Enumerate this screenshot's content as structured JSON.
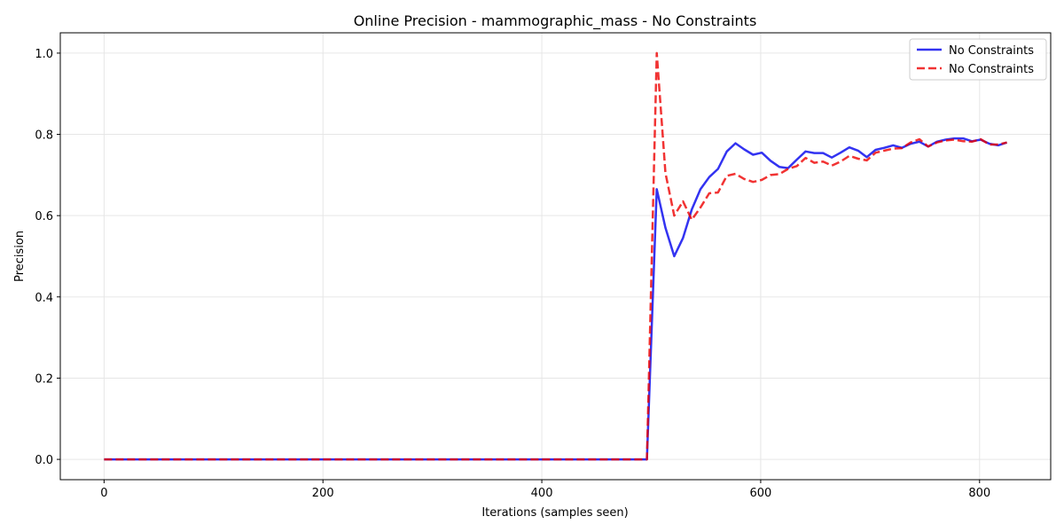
{
  "chart_data": {
    "type": "line",
    "title": "Online Precision - mammographic_mass - No Constraints",
    "xlabel": "Iterations (samples seen)",
    "ylabel": "Precision",
    "xlim": [
      -40,
      865
    ],
    "ylim": [
      -0.05,
      1.05
    ],
    "xticks": [
      0,
      200,
      400,
      600,
      800
    ],
    "xtick_labels": [
      "0",
      "200",
      "400",
      "600",
      "800"
    ],
    "yticks": [
      0.0,
      0.2,
      0.4,
      0.6,
      0.8,
      1.0
    ],
    "ytick_labels": [
      "0.0",
      "0.2",
      "0.4",
      "0.6",
      "0.8",
      "1.0"
    ],
    "grid": true,
    "legend_position": "top-right",
    "series": [
      {
        "name": "No Constraints",
        "color": "#0000ee",
        "style": "solid",
        "points": [
          [
            0,
            0.0
          ],
          [
            100,
            0.0
          ],
          [
            200,
            0.0
          ],
          [
            300,
            0.0
          ],
          [
            400,
            0.0
          ],
          [
            496,
            0.0
          ],
          [
            505,
            0.665
          ],
          [
            513,
            0.57
          ],
          [
            521,
            0.5
          ],
          [
            529,
            0.545
          ],
          [
            537,
            0.615
          ],
          [
            545,
            0.665
          ],
          [
            553,
            0.695
          ],
          [
            561,
            0.715
          ],
          [
            569,
            0.758
          ],
          [
            577,
            0.778
          ],
          [
            585,
            0.763
          ],
          [
            593,
            0.75
          ],
          [
            601,
            0.755
          ],
          [
            609,
            0.735
          ],
          [
            617,
            0.72
          ],
          [
            625,
            0.717
          ],
          [
            633,
            0.738
          ],
          [
            641,
            0.758
          ],
          [
            649,
            0.754
          ],
          [
            657,
            0.754
          ],
          [
            665,
            0.743
          ],
          [
            673,
            0.755
          ],
          [
            681,
            0.768
          ],
          [
            689,
            0.76
          ],
          [
            697,
            0.744
          ],
          [
            705,
            0.762
          ],
          [
            713,
            0.767
          ],
          [
            721,
            0.773
          ],
          [
            729,
            0.767
          ],
          [
            737,
            0.777
          ],
          [
            745,
            0.782
          ],
          [
            753,
            0.77
          ],
          [
            761,
            0.782
          ],
          [
            769,
            0.787
          ],
          [
            777,
            0.79
          ],
          [
            785,
            0.79
          ],
          [
            793,
            0.783
          ],
          [
            801,
            0.787
          ],
          [
            809,
            0.777
          ],
          [
            817,
            0.773
          ],
          [
            825,
            0.78
          ]
        ]
      },
      {
        "name": "No Constraints",
        "color": "#ee0000",
        "style": "dashed",
        "points": [
          [
            0,
            0.0
          ],
          [
            100,
            0.0
          ],
          [
            200,
            0.0
          ],
          [
            300,
            0.0
          ],
          [
            400,
            0.0
          ],
          [
            496,
            0.0
          ],
          [
            505,
            1.0
          ],
          [
            513,
            0.705
          ],
          [
            521,
            0.6
          ],
          [
            529,
            0.635
          ],
          [
            537,
            0.59
          ],
          [
            545,
            0.62
          ],
          [
            553,
            0.655
          ],
          [
            561,
            0.657
          ],
          [
            569,
            0.698
          ],
          [
            577,
            0.703
          ],
          [
            585,
            0.69
          ],
          [
            593,
            0.683
          ],
          [
            601,
            0.688
          ],
          [
            609,
            0.7
          ],
          [
            617,
            0.702
          ],
          [
            625,
            0.715
          ],
          [
            633,
            0.722
          ],
          [
            641,
            0.742
          ],
          [
            649,
            0.73
          ],
          [
            657,
            0.733
          ],
          [
            665,
            0.723
          ],
          [
            673,
            0.733
          ],
          [
            681,
            0.747
          ],
          [
            689,
            0.74
          ],
          [
            697,
            0.736
          ],
          [
            705,
            0.755
          ],
          [
            713,
            0.76
          ],
          [
            721,
            0.765
          ],
          [
            729,
            0.766
          ],
          [
            737,
            0.78
          ],
          [
            745,
            0.788
          ],
          [
            753,
            0.77
          ],
          [
            761,
            0.78
          ],
          [
            769,
            0.785
          ],
          [
            777,
            0.787
          ],
          [
            785,
            0.783
          ],
          [
            793,
            0.782
          ],
          [
            801,
            0.788
          ],
          [
            809,
            0.775
          ],
          [
            817,
            0.775
          ],
          [
            825,
            0.78
          ]
        ]
      }
    ]
  }
}
